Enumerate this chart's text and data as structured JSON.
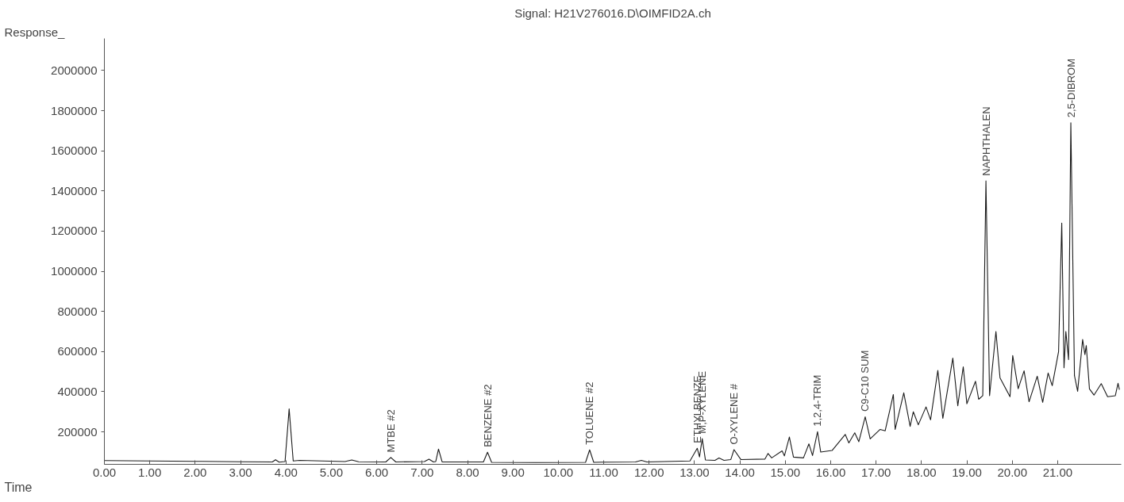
{
  "chart_data": {
    "type": "line",
    "title": "Signal: H21V276016.D\\OIMFID2A.ch",
    "xlabel": "Time",
    "ylabel": "Response_",
    "x": [
      0.0,
      1.0,
      2.0,
      3.0,
      3.7,
      3.77,
      3.85,
      3.98,
      4.07,
      4.16,
      4.3,
      5.3,
      5.45,
      5.6,
      6.2,
      6.31,
      6.42,
      7.05,
      7.15,
      7.25,
      7.3,
      7.36,
      7.44,
      8.35,
      8.44,
      8.53,
      9.5,
      10.6,
      10.69,
      10.78,
      10.95,
      11.7,
      11.83,
      11.95,
      12.9,
      13.06,
      13.11,
      13.17,
      13.24,
      13.45,
      13.54,
      13.65,
      13.8,
      13.87,
      14.02,
      14.55,
      14.62,
      14.7,
      14.93,
      14.98,
      15.09,
      15.18,
      15.4,
      15.52,
      15.6,
      15.71,
      15.78,
      16.03,
      16.32,
      16.4,
      16.53,
      16.62,
      16.76,
      16.87,
      17.09,
      17.2,
      17.38,
      17.42,
      17.61,
      17.75,
      17.82,
      17.93,
      18.1,
      18.2,
      18.36,
      18.47,
      18.69,
      18.8,
      18.92,
      19.0,
      19.19,
      19.26,
      19.35,
      19.42,
      19.5,
      19.64,
      19.73,
      19.95,
      20.01,
      20.13,
      20.26,
      20.37,
      20.55,
      20.67,
      20.79,
      20.88,
      21.02,
      21.09,
      21.14,
      21.18,
      21.24,
      21.29,
      21.37,
      21.44,
      21.55,
      21.6,
      21.63,
      21.7,
      21.8,
      21.96,
      22.1,
      22.27,
      22.33,
      22.36
    ],
    "values": [
      57000,
      55000,
      53000,
      51000,
      50000,
      61000,
      49000,
      52000,
      314000,
      55000,
      58000,
      52000,
      60000,
      51000,
      50000,
      72000,
      50000,
      52000,
      64000,
      50000,
      52000,
      114000,
      50000,
      50000,
      98000,
      48000,
      47000,
      48000,
      110000,
      48000,
      49000,
      50000,
      58000,
      50000,
      55000,
      118000,
      75000,
      166000,
      60000,
      58000,
      70000,
      58000,
      62000,
      111000,
      62000,
      64000,
      92000,
      70000,
      105000,
      80000,
      174000,
      74000,
      70000,
      140000,
      82000,
      201000,
      99000,
      107000,
      187000,
      145000,
      195000,
      151000,
      275000,
      165000,
      212000,
      205000,
      386000,
      212000,
      394000,
      227000,
      300000,
      235000,
      324000,
      260000,
      506000,
      267000,
      567000,
      330000,
      524000,
      340000,
      452000,
      362000,
      380000,
      1450000,
      380000,
      700000,
      469000,
      375000,
      580000,
      415000,
      504000,
      350000,
      477000,
      347000,
      493000,
      430000,
      600000,
      1240000,
      519000,
      700000,
      560000,
      1740000,
      480000,
      402000,
      660000,
      585000,
      630000,
      414000,
      383000,
      440000,
      375000,
      380000,
      442000,
      410000
    ],
    "color": "#1a1a1a",
    "xlim": [
      0,
      22.4
    ],
    "ylim": [
      38000,
      2160000
    ],
    "xticks": [
      {
        "value": 0,
        "label": "0.00"
      },
      {
        "value": 1,
        "label": "1.00"
      },
      {
        "value": 2,
        "label": "2.00"
      },
      {
        "value": 3,
        "label": "3.00"
      },
      {
        "value": 4,
        "label": "4.00"
      },
      {
        "value": 5,
        "label": "5.00"
      },
      {
        "value": 6,
        "label": "6.00"
      },
      {
        "value": 7,
        "label": "7.00"
      },
      {
        "value": 8,
        "label": "8.00"
      },
      {
        "value": 9,
        "label": "9.00"
      },
      {
        "value": 10,
        "label": "10.00"
      },
      {
        "value": 11,
        "label": "11.00"
      },
      {
        "value": 12,
        "label": "12.00"
      },
      {
        "value": 13,
        "label": "13.00"
      },
      {
        "value": 14,
        "label": "14.00"
      },
      {
        "value": 15,
        "label": "15.00"
      },
      {
        "value": 16,
        "label": "16.00"
      },
      {
        "value": 17,
        "label": "17.00"
      },
      {
        "value": 18,
        "label": "18.00"
      },
      {
        "value": 19,
        "label": "19.00"
      },
      {
        "value": 20,
        "label": "20.00"
      },
      {
        "value": 21,
        "label": "21.00"
      }
    ],
    "yticks": [
      200000,
      400000,
      600000,
      800000,
      1000000,
      1200000,
      1400000,
      1600000,
      1800000,
      2000000
    ],
    "grid": false,
    "legend": false,
    "annotations": [
      {
        "text": "MTBE #2",
        "x": 6.31,
        "y": 72000
      },
      {
        "text": "BENZENE #2",
        "x": 8.44,
        "y": 98000
      },
      {
        "text": "TOLUENE #2",
        "x": 10.69,
        "y": 110000
      },
      {
        "text": "ETHYLBENZE",
        "x": 13.06,
        "y": 118000
      },
      {
        "text": "M,P-XYLENE",
        "x": 13.17,
        "y": 166000
      },
      {
        "text": "O-XYLENE #",
        "x": 13.87,
        "y": 111000
      },
      {
        "text": "1,2,4-TRIM",
        "x": 15.71,
        "y": 201000
      },
      {
        "text": "C9-C10 SUM",
        "x": 16.76,
        "y": 275000
      },
      {
        "text": "NAPHTHALEN",
        "x": 19.42,
        "y": 1450000
      },
      {
        "text": "2,5-DIBROM",
        "x": 21.29,
        "y": 1740000
      }
    ]
  }
}
